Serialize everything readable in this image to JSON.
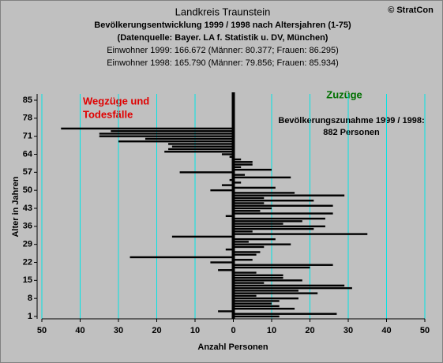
{
  "chart_data": {
    "type": "bar",
    "orientation": "horizontal",
    "title": "Landkreis Traunstein",
    "subtitle": "Bevölkerungsentwicklung 1999 / 1998  nach Altersjahren (1-75)",
    "source": "(Datenquelle: Bayer. LA f. Statistik u. DV, München)",
    "info_1999": "Einwohner 1999: 166.672  (Männer: 80.377; Frauen: 86.295)",
    "info_1998": "Einwohner 1998: 165.790  (Männer: 79.856; Frauen: 85.934)",
    "copyright": "© StratCon",
    "annotation_left": [
      "Wegzüge und",
      "Todesfälle"
    ],
    "annotation_right": "Zuzüge",
    "annotation_total": [
      "Bevölkerungszunahme 1999 / 1998:",
      "882 Personen"
    ],
    "ylabel": "Alter in Jahren",
    "xlabel": "Anzahl Personen",
    "ages": [
      1,
      2,
      3,
      4,
      5,
      6,
      7,
      8,
      9,
      10,
      11,
      12,
      13,
      14,
      15,
      16,
      17,
      18,
      19,
      20,
      21,
      22,
      23,
      24,
      25,
      26,
      27,
      28,
      29,
      30,
      31,
      32,
      33,
      34,
      35,
      36,
      37,
      38,
      39,
      40,
      41,
      42,
      43,
      44,
      45,
      46,
      47,
      48,
      49,
      50,
      51,
      52,
      53,
      54,
      55,
      56,
      57,
      58,
      59,
      60,
      61,
      62,
      63,
      64,
      65,
      66,
      67,
      68,
      69,
      70,
      71,
      72,
      73,
      74,
      75,
      76,
      77,
      78,
      79,
      80,
      81,
      82,
      83,
      84,
      85
    ],
    "values": [
      12,
      27,
      -4,
      16,
      12,
      10,
      12,
      17,
      6,
      22,
      17,
      31,
      29,
      8,
      18,
      13,
      13,
      6,
      -4,
      20,
      26,
      -6,
      5,
      -27,
      6,
      7,
      -2,
      8,
      15,
      4,
      11,
      -16,
      35,
      5,
      21,
      24,
      13,
      18,
      24,
      -2,
      26,
      7,
      10,
      26,
      8,
      21,
      8,
      29,
      16,
      -6,
      11,
      -3,
      2,
      -1,
      15,
      3,
      -14,
      10,
      2,
      5,
      5,
      2,
      -1,
      -3,
      -18,
      -17,
      -16,
      -17,
      -30,
      -23,
      -35,
      -35,
      -32,
      -45,
      0,
      0,
      0,
      0,
      0,
      0,
      0,
      0,
      0,
      0,
      0
    ],
    "color": "#000000",
    "grid_color": "#00e5e5",
    "xlim": [
      -50,
      50
    ],
    "xticks": [
      {
        "value": -50,
        "label": "50"
      },
      {
        "value": -40,
        "label": "40"
      },
      {
        "value": -30,
        "label": "30"
      },
      {
        "value": -20,
        "label": "20"
      },
      {
        "value": -10,
        "label": "10"
      },
      0,
      10,
      20,
      30,
      40,
      50
    ],
    "ylim": [
      1,
      85
    ],
    "yticks": [
      1,
      8,
      15,
      22,
      29,
      36,
      43,
      50,
      57,
      64,
      71,
      78,
      85
    ],
    "grid": true
  }
}
